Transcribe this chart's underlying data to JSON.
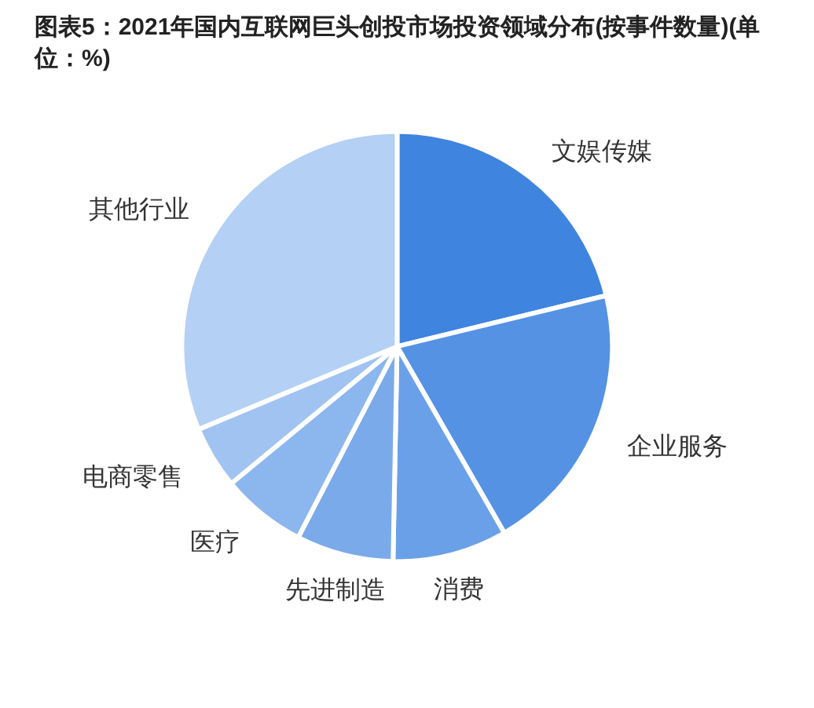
{
  "chart_data": {
    "type": "pie",
    "title": "图表5：2021年国内互联网巨头创投市场投资领域分布(按事件数量)(单位：%)",
    "categories": [
      "文娱传媒",
      "企业服务",
      "消费",
      "先进制造",
      "医疗",
      "电商零售",
      "其他行业"
    ],
    "values": [
      21.2,
      20.5,
      8.6,
      7.3,
      6.4,
      4.7,
      31.3
    ],
    "colors": [
      "#3f84df",
      "#5592e3",
      "#6aa0e8",
      "#7aaaea",
      "#8cb6ee",
      "#a0c3f1",
      "#b4d0f4"
    ],
    "legend": false
  }
}
